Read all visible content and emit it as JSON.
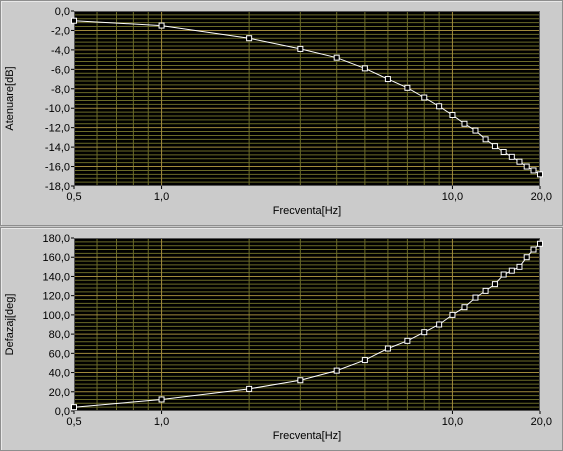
{
  "chart_data": [
    {
      "type": "line",
      "title": "",
      "xlabel": "Frecventa[Hz]",
      "ylabel": "Atenuare[dB]",
      "xscale": "log",
      "xlim": [
        0.5,
        20
      ],
      "ylim": [
        -18,
        0
      ],
      "xticks": [
        "0,5",
        "1,0",
        "10,0",
        "20,0"
      ],
      "yticks": [
        "0,0",
        "-2,0",
        "-4,0",
        "-6,0",
        "-8,0",
        "-10,0",
        "-12,0",
        "-14,0",
        "-16,0",
        "-18,0"
      ],
      "grid": true,
      "plot_background": "#000000",
      "grid_color_major": "#a08a3c",
      "grid_color_minor": "#6a6a28",
      "line_color": "#ffffff",
      "series": [
        {
          "marker": "square",
          "x": [
            0.5,
            1,
            2,
            3,
            4,
            5,
            6,
            7,
            8,
            9,
            10,
            11,
            12,
            13,
            14,
            15,
            16,
            17,
            18,
            19,
            20
          ],
          "y": [
            -1.0,
            -1.5,
            -2.8,
            -3.9,
            -4.8,
            -5.9,
            -7.0,
            -7.9,
            -8.9,
            -9.8,
            -10.7,
            -11.6,
            -12.3,
            -13.2,
            -13.9,
            -14.5,
            -15.0,
            -15.5,
            -16.0,
            -16.4,
            -16.8
          ]
        }
      ]
    },
    {
      "type": "line",
      "title": "",
      "xlabel": "Frecventa[Hz]",
      "ylabel": "Defazaj[deg]",
      "xscale": "log",
      "xlim": [
        0.5,
        20
      ],
      "ylim": [
        0,
        180
      ],
      "xticks": [
        "0,5",
        "1,0",
        "10,0",
        "20,0"
      ],
      "yticks": [
        "180,0",
        "160,0",
        "140,0",
        "120,0",
        "100,0",
        "80,0",
        "60,0",
        "40,0",
        "20,0",
        "0,0"
      ],
      "grid": true,
      "plot_background": "#000000",
      "grid_color_major": "#a08a3c",
      "grid_color_minor": "#6a6a28",
      "line_color": "#ffffff",
      "series": [
        {
          "marker": "square",
          "x": [
            0.5,
            1,
            2,
            3,
            4,
            5,
            6,
            7,
            8,
            9,
            10,
            11,
            12,
            13,
            14,
            15,
            16,
            17,
            18,
            19,
            20
          ],
          "y": [
            4,
            12,
            23,
            32,
            42,
            53,
            65,
            73,
            82,
            90,
            100,
            108,
            118,
            125,
            132,
            142,
            146,
            150,
            160,
            168,
            174
          ]
        }
      ]
    }
  ]
}
